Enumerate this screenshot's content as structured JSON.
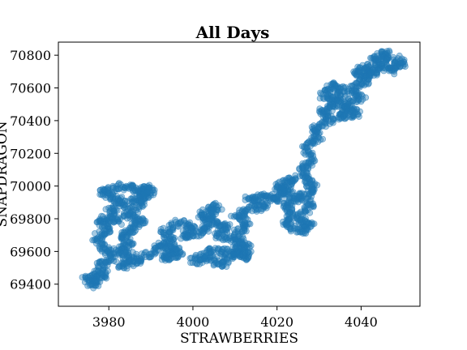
{
  "chart_data": {
    "type": "scatter",
    "title": "All Days",
    "xlabel": "STRAWBERRIES",
    "ylabel": "SNAPDRAGON",
    "xlim": [
      3968,
      4054
    ],
    "ylim": [
      69265,
      70880
    ],
    "xticks": [
      3980,
      4000,
      4020,
      4040
    ],
    "yticks": [
      69400,
      69600,
      69800,
      70000,
      70200,
      70400,
      70600,
      70800
    ],
    "grid": false,
    "legend": "none",
    "point_color": "#1f77b4",
    "point_alpha": 0.4,
    "path_waypoints": [
      [
        3974,
        69420
      ],
      [
        3977,
        69470
      ],
      [
        3976,
        69380
      ],
      [
        3979,
        69450
      ],
      [
        3978,
        69520
      ],
      [
        3981,
        69560
      ],
      [
        3979,
        69620
      ],
      [
        3977,
        69680
      ],
      [
        3980,
        69740
      ],
      [
        3978,
        69800
      ],
      [
        3982,
        69780
      ],
      [
        3980,
        69860
      ],
      [
        3984,
        69890
      ],
      [
        3981,
        69930
      ],
      [
        3978,
        69960
      ],
      [
        3982,
        70000
      ],
      [
        3986,
        69990
      ],
      [
        3989,
        69950
      ],
      [
        3986,
        69910
      ],
      [
        3990,
        69960
      ],
      [
        3989,
        70000
      ],
      [
        3987,
        69870
      ],
      [
        3984,
        69820
      ],
      [
        3988,
        69790
      ],
      [
        3986,
        69740
      ],
      [
        3983,
        69700
      ],
      [
        3985,
        69640
      ],
      [
        3982,
        69600
      ],
      [
        3986,
        69570
      ],
      [
        3983,
        69510
      ],
      [
        3987,
        69540
      ],
      [
        3990,
        69600
      ],
      [
        3993,
        69650
      ],
      [
        3995,
        69600
      ],
      [
        3993,
        69560
      ],
      [
        3997,
        69580
      ],
      [
        3995,
        69660
      ],
      [
        3993,
        69720
      ],
      [
        3997,
        69780
      ],
      [
        4000,
        69740
      ],
      [
        3998,
        69690
      ],
      [
        4002,
        69710
      ],
      [
        4004,
        69770
      ],
      [
        4002,
        69830
      ],
      [
        4006,
        69880
      ],
      [
        4004,
        69800
      ],
      [
        4008,
        69760
      ],
      [
        4006,
        69700
      ],
      [
        4010,
        69660
      ],
      [
        4012,
        69620
      ],
      [
        4009,
        69580
      ],
      [
        4007,
        69520
      ],
      [
        4004,
        69560
      ],
      [
        4000,
        69540
      ],
      [
        4004,
        69600
      ],
      [
        4008,
        69600
      ],
      [
        4012,
        69560
      ],
      [
        4013,
        69620
      ],
      [
        4010,
        69700
      ],
      [
        4013,
        69760
      ],
      [
        4010,
        69820
      ],
      [
        4014,
        69860
      ],
      [
        4017,
        69880
      ],
      [
        4013,
        69920
      ],
      [
        4018,
        69940
      ],
      [
        4020,
        69920
      ],
      [
        4022,
        69960
      ],
      [
        4020,
        70000
      ],
      [
        4024,
        70050
      ],
      [
        4022,
        69980
      ],
      [
        4025,
        69930
      ],
      [
        4022,
        69880
      ],
      [
        4024,
        69820
      ],
      [
        4022,
        69760
      ],
      [
        4026,
        69720
      ],
      [
        4028,
        69760
      ],
      [
        4025,
        69800
      ],
      [
        4028,
        69880
      ],
      [
        4026,
        69940
      ],
      [
        4029,
        69980
      ],
      [
        4027,
        70040
      ],
      [
        4026,
        70100
      ],
      [
        4028,
        70160
      ],
      [
        4027,
        70240
      ],
      [
        4030,
        70300
      ],
      [
        4029,
        70360
      ],
      [
        4033,
        70400
      ],
      [
        4031,
        70460
      ],
      [
        4034,
        70500
      ],
      [
        4031,
        70560
      ],
      [
        4033,
        70620
      ],
      [
        4036,
        70580
      ],
      [
        4034,
        70520
      ],
      [
        4037,
        70480
      ],
      [
        4035,
        70420
      ],
      [
        4039,
        70440
      ],
      [
        4036,
        70500
      ],
      [
        4040,
        70540
      ],
      [
        4038,
        70600
      ],
      [
        4041,
        70640
      ],
      [
        4039,
        70700
      ],
      [
        4042,
        70730
      ],
      [
        4041,
        70660
      ],
      [
        4044,
        70700
      ],
      [
        4043,
        70780
      ],
      [
        4046,
        70820
      ],
      [
        4045,
        70760
      ],
      [
        4047,
        70700
      ],
      [
        4050,
        70740
      ],
      [
        4048,
        70780
      ]
    ]
  }
}
